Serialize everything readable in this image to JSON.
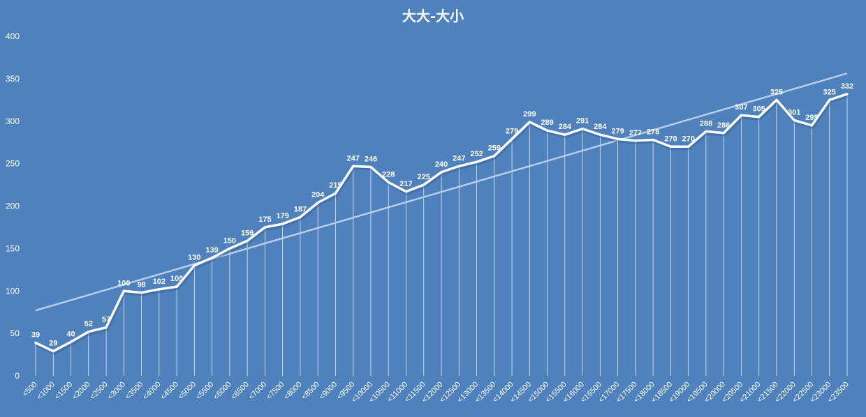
{
  "chart_data": {
    "type": "line",
    "title": "大大-大小",
    "xlabel": "",
    "ylabel": "",
    "ylim": [
      0,
      400
    ],
    "yticks": [
      0,
      50,
      100,
      150,
      200,
      250,
      300,
      350,
      400
    ],
    "grid": false,
    "drop_lines": true,
    "trendline": "linear",
    "data_labels": true,
    "categories": [
      "<500",
      "<1000",
      "<1500",
      "<2000",
      "<2500",
      "<3000",
      "<3500",
      "<4000",
      "<4500",
      "<5000",
      "<5500",
      "<6000",
      "<6500",
      "<7000",
      "<7500",
      "<8000",
      "<8500",
      "<9000",
      "<9500",
      "<10000",
      "<10500",
      "<11000",
      "<11500",
      "<12000",
      "<12500",
      "<13000",
      "<13500",
      "<14000",
      "<14500",
      "<15000",
      "<15500",
      "<16000",
      "<16500",
      "<17000",
      "<17500",
      "<18000",
      "<18500",
      "<19000",
      "<19500",
      "<20000",
      "<20500",
      "<21000",
      "<21500",
      "<22000",
      "<22500",
      "<23000",
      "<23500"
    ],
    "values": [
      39,
      29,
      40,
      52,
      57,
      100,
      98,
      102,
      105,
      130,
      139,
      150,
      159,
      175,
      179,
      187,
      204,
      215,
      247,
      246,
      228,
      217,
      225,
      240,
      247,
      252,
      259,
      279,
      299,
      289,
      284,
      291,
      284,
      279,
      277,
      278,
      270,
      270,
      288,
      286,
      307,
      305,
      325,
      301,
      295,
      325,
      332
    ],
    "colors": {
      "background": "#4f81bd",
      "line": "#ffffff",
      "trendline": "#b9cde9",
      "drop_lines": "#ffffff"
    }
  }
}
